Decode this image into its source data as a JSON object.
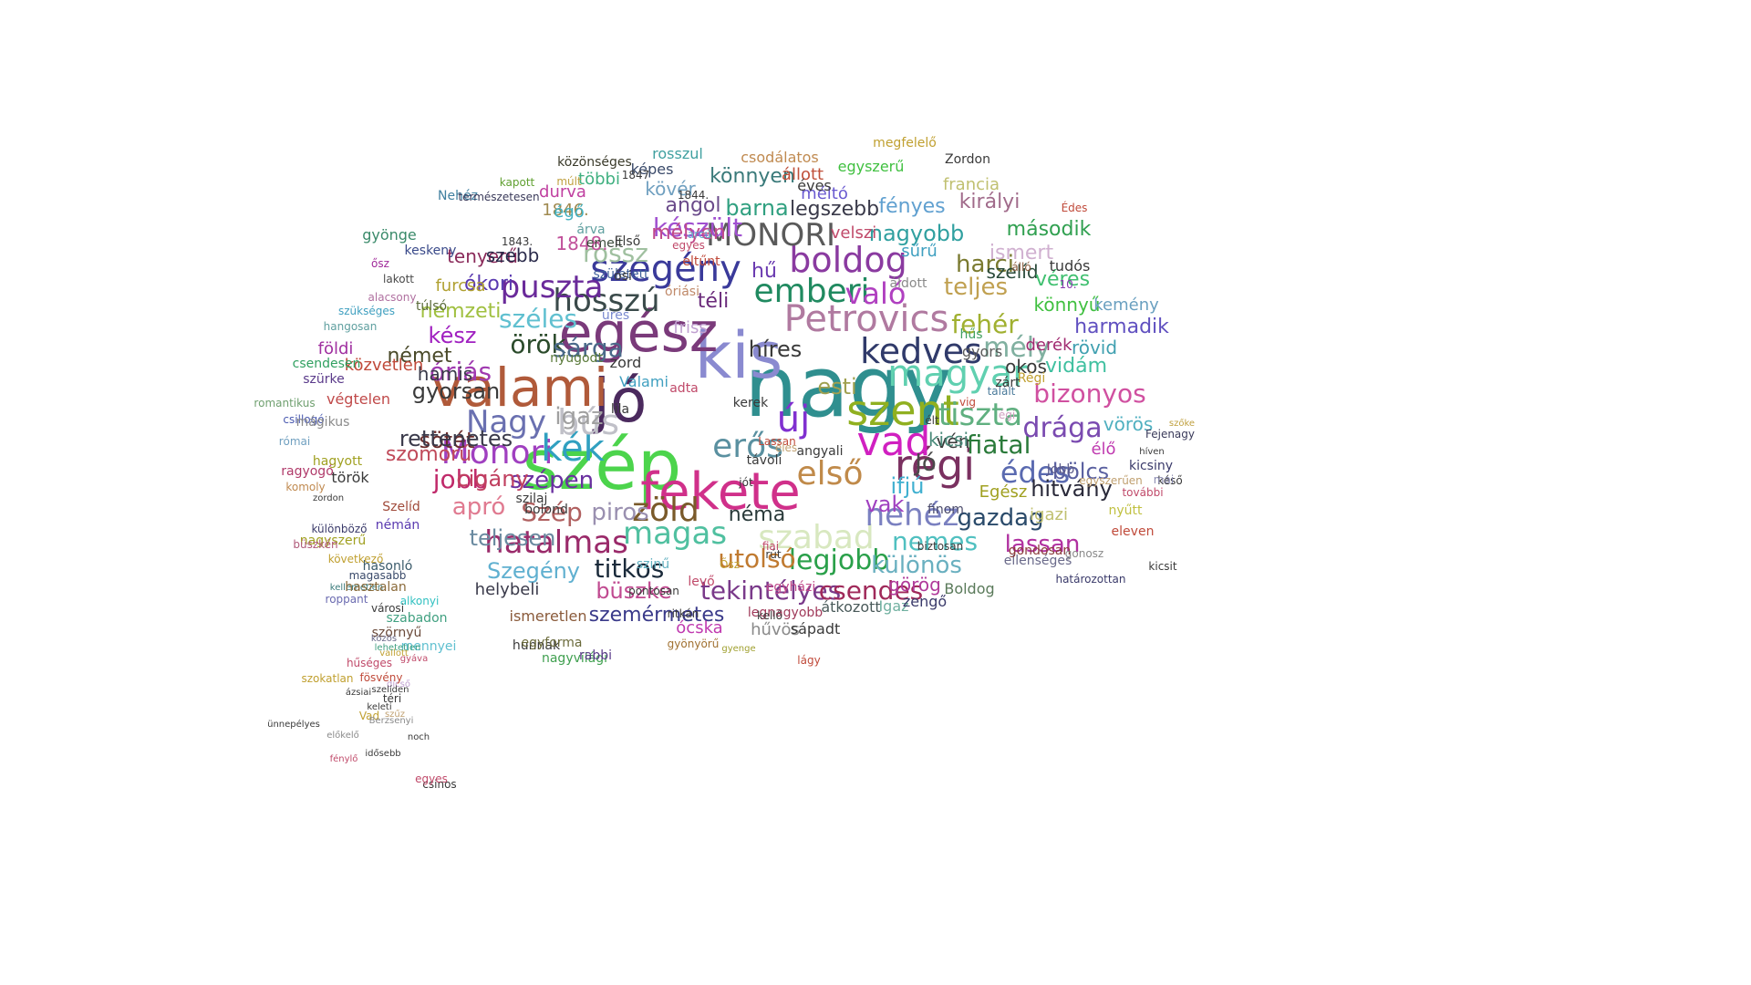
{
  "words": [
    {
      "text": "nagy",
      "color": "#2f8f8f"
    },
    {
      "text": "kis",
      "color": "#8a8ad0"
    },
    {
      "text": "jó",
      "color": "#4b2a5e"
    },
    {
      "text": "szép",
      "color": "#4cd44c"
    },
    {
      "text": "egész",
      "color": "#7a3a7a"
    },
    {
      "text": "valami",
      "color": "#b05a3a"
    },
    {
      "text": "fekete",
      "color": "#d0308a"
    },
    {
      "text": "szent",
      "color": "#90b020"
    },
    {
      "text": "régi",
      "color": "#7a3060"
    },
    {
      "text": "vad",
      "color": "#d020c0"
    },
    {
      "text": "új",
      "color": "#8030d0"
    },
    {
      "text": "magyar",
      "color": "#60d0b0"
    },
    {
      "text": "kedves",
      "color": "#303a6a"
    },
    {
      "text": "Petrovics",
      "color": "#b07aa0"
    },
    {
      "text": "emberi",
      "color": "#208a60"
    },
    {
      "text": "boldog",
      "color": "#8a3aa0"
    },
    {
      "text": "szegény",
      "color": "#3a3a9a"
    },
    {
      "text": "hosszú",
      "color": "#3a4a4a"
    },
    {
      "text": "puszta",
      "color": "#6a2a9a"
    },
    {
      "text": "zöld",
      "color": "#7a5a2a"
    },
    {
      "text": "magas",
      "color": "#50c0a0"
    },
    {
      "text": "hatalmas",
      "color": "#9a2a6a"
    },
    {
      "text": "Monori",
      "color": "#a040c0"
    },
    {
      "text": "kék",
      "color": "#30a0c0"
    },
    {
      "text": "Nagy",
      "color": "#6a70b0"
    },
    {
      "text": "bús",
      "color": "#c0c0c8"
    },
    {
      "text": "erős",
      "color": "#5a90a0"
    },
    {
      "text": "első",
      "color": "#c08a4a"
    },
    {
      "text": "szabad",
      "color": "#d8e8c0"
    },
    {
      "text": "nehéz",
      "color": "#7a80c0"
    },
    {
      "text": "tiszta",
      "color": "#60b080"
    },
    {
      "text": "édes",
      "color": "#5a6ab0"
    },
    {
      "text": "fiatal",
      "color": "#2a7a3a"
    },
    {
      "text": "drága",
      "color": "#7a4ab0"
    },
    {
      "text": "bizonyos",
      "color": "#d050a0"
    },
    {
      "text": "mély",
      "color": "#80b0a0"
    },
    {
      "text": "fehér",
      "color": "#a0b030"
    },
    {
      "text": "MONORI",
      "color": "#5a5a5a"
    },
    {
      "text": "készült",
      "color": "#a050d0"
    },
    {
      "text": "való",
      "color": "#b040c0"
    },
    {
      "text": "teljes",
      "color": "#c0a050"
    },
    {
      "text": "harci",
      "color": "#7a7a30"
    },
    {
      "text": "széles",
      "color": "#60c0d0"
    },
    {
      "text": "örök",
      "color": "#2a4a2a"
    },
    {
      "text": "sárga",
      "color": "#4a6a8a"
    },
    {
      "text": "szépen",
      "color": "#6a30a0"
    },
    {
      "text": "Szép",
      "color": "#b06060"
    },
    {
      "text": "piros",
      "color": "#9a90b0"
    },
    {
      "text": "titkos",
      "color": "#1a2a3a"
    },
    {
      "text": "tekintélyes",
      "color": "#7a3a8a"
    },
    {
      "text": "csendes",
      "color": "#a02a5a"
    },
    {
      "text": "legjobb",
      "color": "#2aa04a"
    },
    {
      "text": "különös",
      "color": "#6ab0c0"
    },
    {
      "text": "nemes",
      "color": "#50c0c0"
    },
    {
      "text": "gazdag",
      "color": "#2a4a6a"
    },
    {
      "text": "lassan",
      "color": "#b030a0"
    },
    {
      "text": "hitvány",
      "color": "#2a2a3a"
    },
    {
      "text": "bölcs",
      "color": "#5a60a0"
    },
    {
      "text": "utolsó",
      "color": "#c07a30"
    },
    {
      "text": "néma",
      "color": "#2a3a3a"
    },
    {
      "text": "jobb",
      "color": "#c02a6a"
    },
    {
      "text": "apró",
      "color": "#e07a90"
    },
    {
      "text": "igaz",
      "color": "#a0a0a0"
    },
    {
      "text": "sötét",
      "color": "#6a2a2a"
    },
    {
      "text": "óriás",
      "color": "#a03ab0"
    },
    {
      "text": "gyorsan",
      "color": "#3a3a3a"
    },
    {
      "text": "rettenetes",
      "color": "#3a3a4a"
    },
    {
      "text": "szomorú",
      "color": "#c04a5a"
    },
    {
      "text": "Szegény",
      "color": "#60b0d0"
    },
    {
      "text": "büszke",
      "color": "#c04a90"
    },
    {
      "text": "szemérmetes",
      "color": "#3a3a8a"
    },
    {
      "text": "legszebb",
      "color": "#3a3a4a"
    },
    {
      "text": "nagyobb",
      "color": "#30a0a0"
    },
    {
      "text": "második",
      "color": "#30a050"
    },
    {
      "text": "esti",
      "color": "#a0a050"
    },
    {
      "text": "kész",
      "color": "#a020c0"
    },
    {
      "text": "német",
      "color": "#4a4a2a"
    },
    {
      "text": "rossz",
      "color": "#a0c0a0"
    },
    {
      "text": "barna",
      "color": "#30a080"
    },
    {
      "text": "angol",
      "color": "#6a4a8a"
    },
    {
      "text": "mélyen",
      "color": "#c04a8a"
    },
    {
      "text": "könnyen",
      "color": "#3a7a7a"
    },
    {
      "text": "fényes",
      "color": "#60a0d0"
    },
    {
      "text": "királyi",
      "color": "#a06a8a"
    },
    {
      "text": "francia",
      "color": "#c0c070"
    },
    {
      "text": "egyszerű",
      "color": "#40c040"
    },
    {
      "text": "ismert",
      "color": "#d0b0d0"
    },
    {
      "text": "szelíd",
      "color": "#2a4a3a"
    },
    {
      "text": "véres",
      "color": "#40c070"
    },
    {
      "text": "könnyű",
      "color": "#40c040"
    },
    {
      "text": "harmadik",
      "color": "#6050c0"
    },
    {
      "text": "rövid",
      "color": "#40a0b0"
    },
    {
      "text": "vidám",
      "color": "#40c0a0"
    },
    {
      "text": "okos",
      "color": "#3a3a3a"
    },
    {
      "text": "derék",
      "color": "#a02a70"
    },
    {
      "text": "kemény",
      "color": "#6aa0c0"
    },
    {
      "text": "vörös",
      "color": "#50b0c0"
    },
    {
      "text": "élő",
      "color": "#c03ab0"
    },
    {
      "text": "hű",
      "color": "#6a3ab0"
    },
    {
      "text": "téli",
      "color": "#6a2a7a"
    },
    {
      "text": "vén",
      "color": "#3a3a3a"
    },
    {
      "text": "ifjú",
      "color": "#40b0d0"
    },
    {
      "text": "Jó",
      "color": "#4a4a4a"
    },
    {
      "text": "kicsi",
      "color": "#4a8a7a"
    },
    {
      "text": "vak",
      "color": "#a040c0"
    },
    {
      "text": "görög",
      "color": "#b03a9a"
    },
    {
      "text": "Egész",
      "color": "#a0a020"
    },
    {
      "text": "igazi",
      "color": "#c0c070"
    },
    {
      "text": "finom",
      "color": "#4a4a6a"
    },
    {
      "text": "teljesen",
      "color": "#6a8aa0"
    },
    {
      "text": "helybeli",
      "color": "#3a3a4a"
    },
    {
      "text": "cigány",
      "color": "#c04060"
    },
    {
      "text": "tenyerű",
      "color": "#8a2a5a"
    },
    {
      "text": "ókori",
      "color": "#5a3ab0"
    },
    {
      "text": "furcsa",
      "color": "#b0a030"
    },
    {
      "text": "nemzeti",
      "color": "#a0c040"
    },
    {
      "text": "szebb",
      "color": "#2a2a4a"
    },
    {
      "text": "1848.",
      "color": "#c0509a"
    },
    {
      "text": "1846.",
      "color": "#a08a50"
    },
    {
      "text": "kövér",
      "color": "#70a0c0"
    },
    {
      "text": "képes",
      "color": "#3a4a6a"
    },
    {
      "text": "rosszul",
      "color": "#40a0a0"
    },
    {
      "text": "csodálatos",
      "color": "#c08a50"
    },
    {
      "text": "állott",
      "color": "#c0503a"
    },
    {
      "text": "méltó",
      "color": "#6a5ad0"
    },
    {
      "text": "éves",
      "color": "#3a3a3a"
    },
    {
      "text": "megfelelő",
      "color": "#c0a030"
    },
    {
      "text": "Zordon",
      "color": "#3a3a3a"
    },
    {
      "text": "közönséges",
      "color": "#3a3a2a"
    },
    {
      "text": "többi",
      "color": "#40b080"
    },
    {
      "text": "durva",
      "color": "#c040a0"
    },
    {
      "text": "égő",
      "color": "#40b0c0"
    },
    {
      "text": "árva",
      "color": "#60a0a0"
    },
    {
      "text": "emelt",
      "color": "#3a4a3a"
    },
    {
      "text": "Első",
      "color": "#3a3a3a"
    },
    {
      "text": "született",
      "color": "#40609a"
    },
    {
      "text": "múlt",
      "color": "#c0a040"
    },
    {
      "text": "kapott",
      "color": "#60a030"
    },
    {
      "text": "Nehéz",
      "color": "#4080a0"
    },
    {
      "text": "természetesen",
      "color": "#3a3a5a"
    },
    {
      "text": "gyönge",
      "color": "#3a8a6a"
    },
    {
      "text": "keskeny",
      "color": "#3a4a8a"
    },
    {
      "text": "ősz",
      "color": "#a02a9a"
    },
    {
      "text": "lakott",
      "color": "#4a4a4a"
    },
    {
      "text": "alacsony",
      "color": "#b070a0"
    },
    {
      "text": "túlsó",
      "color": "#5a6a3a"
    },
    {
      "text": "szükséges",
      "color": "#40a0c0"
    },
    {
      "text": "hangosan",
      "color": "#60a0a0"
    },
    {
      "text": "földi",
      "color": "#a030a0"
    },
    {
      "text": "közvetlen",
      "color": "#c04a3a"
    },
    {
      "text": "csendesen",
      "color": "#30a060"
    },
    {
      "text": "hamis",
      "color": "#3a3a4a"
    },
    {
      "text": "szürke",
      "color": "#5a3a8a"
    },
    {
      "text": "romantikus",
      "color": "#70a070"
    },
    {
      "text": "végtelen",
      "color": "#c04a4a"
    },
    {
      "text": "csillogó",
      "color": "#4a5ab0"
    },
    {
      "text": "mágikus",
      "color": "#8a8a8a"
    },
    {
      "text": "római",
      "color": "#70a0c0"
    },
    {
      "text": "hagyott",
      "color": "#a0a020"
    },
    {
      "text": "ragyogó",
      "color": "#b03a6a"
    },
    {
      "text": "török",
      "color": "#3a3a3a"
    },
    {
      "text": "komoly",
      "color": "#c08a50"
    },
    {
      "text": "zordon",
      "color": "#3a3a3a"
    },
    {
      "text": "Szelíd",
      "color": "#a04a3a"
    },
    {
      "text": "némán",
      "color": "#5a3ab0"
    },
    {
      "text": "különböző",
      "color": "#3a3a6a"
    },
    {
      "text": "nagyszerű",
      "color": "#a0a020"
    },
    {
      "text": "büszkén",
      "color": "#b05a7a"
    },
    {
      "text": "hasonló",
      "color": "#3a5a6a"
    },
    {
      "text": "következő",
      "color": "#c0a030"
    },
    {
      "text": "magasabb",
      "color": "#3a4a6a"
    },
    {
      "text": "kellemetlen",
      "color": "#3a7a7a"
    },
    {
      "text": "hasztalan",
      "color": "#8a6a3a"
    },
    {
      "text": "alkonyi",
      "color": "#30c0c0"
    },
    {
      "text": "roppant",
      "color": "#6a6ab0"
    },
    {
      "text": "városi",
      "color": "#3a3a3a"
    },
    {
      "text": "szabadon",
      "color": "#40a080"
    },
    {
      "text": "szörnyű",
      "color": "#6a4a3a"
    },
    {
      "text": "mennyei",
      "color": "#60c0d0"
    },
    {
      "text": "hunnak",
      "color": "#3a3a3a"
    },
    {
      "text": "ismeretlen",
      "color": "#8a5a3a"
    },
    {
      "text": "egyforma",
      "color": "#6a6a3a"
    },
    {
      "text": "nagyvilági",
      "color": "#40a050"
    },
    {
      "text": "rabbi",
      "color": "#5a3a8a"
    },
    {
      "text": "ócska",
      "color": "#c03ab0"
    },
    {
      "text": "ritkán",
      "color": "#3a3a3a"
    },
    {
      "text": "gyönyörű",
      "color": "#a07030"
    },
    {
      "text": "gyenge",
      "color": "#a0a030"
    },
    {
      "text": "lágy",
      "color": "#c04a3a"
    },
    {
      "text": "hűvös",
      "color": "#8a8a8a"
    },
    {
      "text": "sápadt",
      "color": "#3a3a3a"
    },
    {
      "text": "legnagyobb",
      "color": "#a03a5a"
    },
    {
      "text": "egyházi",
      "color": "#c04a8a"
    },
    {
      "text": "átkozott",
      "color": "#4a5a5a"
    },
    {
      "text": "Igaz",
      "color": "#70b0a0"
    },
    {
      "text": "zengő",
      "color": "#3a3a6a"
    },
    {
      "text": "Boldog",
      "color": "#5a7a5a"
    },
    {
      "text": "ellenséges",
      "color": "#6a6a8a"
    },
    {
      "text": "gondosan",
      "color": "#8a3a3a"
    },
    {
      "text": "gonosz",
      "color": "#8a8a8a"
    },
    {
      "text": "kicsit",
      "color": "#3a3a3a"
    },
    {
      "text": "határozottan",
      "color": "#3a3a6a"
    },
    {
      "text": "eleven",
      "color": "#c04a3a"
    },
    {
      "text": "nyűtt",
      "color": "#c0c040"
    },
    {
      "text": "további",
      "color": "#c04a6a"
    },
    {
      "text": "kicsiny",
      "color": "#3a3a6a"
    },
    {
      "text": "késő",
      "color": "#3a3a3a"
    },
    {
      "text": "mai",
      "color": "#8a8ab0"
    },
    {
      "text": "Jobb",
      "color": "#5a5a8a"
    },
    {
      "text": "egyszerűen",
      "color": "#c0a070"
    },
    {
      "text": "híven",
      "color": "#3a3a3a"
    },
    {
      "text": "Fejenagy",
      "color": "#3a3a5a"
    },
    {
      "text": "szőke",
      "color": "#c0a040"
    },
    {
      "text": "Régi",
      "color": "#c0a030"
    },
    {
      "text": "gyors",
      "color": "#5a5a5a"
    },
    {
      "text": "hűs",
      "color": "#40a060"
    },
    {
      "text": "tudós",
      "color": "#3a3a3a"
    },
    {
      "text": "álló",
      "color": "#8a5a3a"
    },
    {
      "text": "Édes",
      "color": "#c04a3a"
    },
    {
      "text": "10.",
      "color": "#8a3ab0"
    },
    {
      "text": "talált",
      "color": "#4a7a9a"
    },
    {
      "text": "zárt",
      "color": "#3a3a3a"
    },
    {
      "text": "égi",
      "color": "#d0a0c0"
    },
    {
      "text": "vig",
      "color": "#c04a3a"
    },
    {
      "text": "élt",
      "color": "#3a3a3a"
    },
    {
      "text": "biztosan",
      "color": "#3a3a3a"
    },
    {
      "text": "velszi",
      "color": "#c04a6a"
    },
    {
      "text": "sűrű",
      "color": "#40a0c0"
    },
    {
      "text": "áldott",
      "color": "#8a8a8a"
    },
    {
      "text": "híres",
      "color": "#3a3a3a"
    },
    {
      "text": "friss",
      "color": "#c0a0d0"
    },
    {
      "text": "zord",
      "color": "#3a3a3a"
    },
    {
      "text": "üres",
      "color": "#7a8ad0"
    },
    {
      "text": "óriási",
      "color": "#c08a6a"
    },
    {
      "text": "eltűnt",
      "color": "#c04a3a"
    },
    {
      "text": "arcú",
      "color": "#60b0d0"
    },
    {
      "text": "egyes",
      "color": "#c04a6a"
    },
    {
      "text": "ősi",
      "color": "#3a3a3a"
    },
    {
      "text": "nyugodt",
      "color": "#5a7a3a"
    },
    {
      "text": "Valami",
      "color": "#40a0c0"
    },
    {
      "text": "lila",
      "color": "#3a3a3a"
    },
    {
      "text": "adta",
      "color": "#c04a6a"
    },
    {
      "text": "kerek",
      "color": "#3a3a3a"
    },
    {
      "text": "Lassan",
      "color": "#c04a3a"
    },
    {
      "text": "éles",
      "color": "#c0a070"
    },
    {
      "text": "angyali",
      "color": "#3a3a3a"
    },
    {
      "text": "távoli",
      "color": "#3a3a3a"
    },
    {
      "text": "jót",
      "color": "#3a3a3a"
    },
    {
      "text": "fiai",
      "color": "#c04a6a"
    },
    {
      "text": "rút",
      "color": "#3a3a3a"
    },
    {
      "text": "Ősz",
      "color": "#c0a030"
    },
    {
      "text": "kellő",
      "color": "#3a3a3a"
    },
    {
      "text": "1844.",
      "color": "#3a3a3a"
    },
    {
      "text": "1847",
      "color": "#3a3a3a"
    },
    {
      "text": "1843.",
      "color": "#3a3a3a"
    },
    {
      "text": "szilaj",
      "color": "#3a3a3a"
    },
    {
      "text": "bolond",
      "color": "#3a3a3a"
    },
    {
      "text": "szinű",
      "color": "#60b0c0"
    },
    {
      "text": "levő",
      "color": "#c04a6a"
    },
    {
      "text": "pontosan",
      "color": "#3a3a3a"
    },
    {
      "text": "vallott",
      "color": "#c0a030"
    },
    {
      "text": "dicső",
      "color": "#c0a0d0"
    },
    {
      "text": "szelíden",
      "color": "#3a3a3a"
    },
    {
      "text": "közös",
      "color": "#6a6a8a"
    },
    {
      "text": "ázsiai",
      "color": "#3a3a3a"
    },
    {
      "text": "szokatlan",
      "color": "#c0a030"
    },
    {
      "text": "fösvény",
      "color": "#c04a3a"
    },
    {
      "text": "gyáva",
      "color": "#c04a6a"
    },
    {
      "text": "lehetetlen",
      "color": "#40a080"
    },
    {
      "text": "hűséges",
      "color": "#c04a6a"
    },
    {
      "text": "keleti",
      "color": "#3a3a3a"
    },
    {
      "text": "téri",
      "color": "#3a3a3a"
    },
    {
      "text": "szűz",
      "color": "#c0a070"
    },
    {
      "text": "Vad",
      "color": "#c0a030"
    },
    {
      "text": "Berzsenyi",
      "color": "#8a8a8a"
    },
    {
      "text": "idősebb",
      "color": "#3a3a3a"
    },
    {
      "text": "ünnepélyes",
      "color": "#3a3a3a"
    },
    {
      "text": "előkelő",
      "color": "#8a8a8a"
    },
    {
      "text": "fénylő",
      "color": "#c04a6a"
    },
    {
      "text": "noch",
      "color": "#3a3a3a"
    },
    {
      "text": "csinos",
      "color": "#3a3a3a"
    },
    {
      "text": "egyes",
      "color": "#c04a6a"
    }
  ]
}
